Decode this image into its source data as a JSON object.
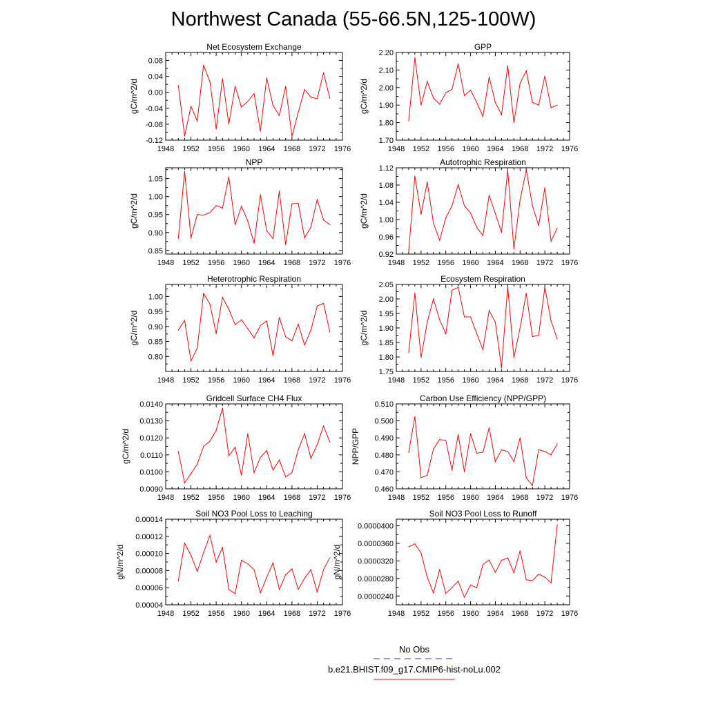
{
  "title": "Northwest Canada (55-66.5N,125-100W)",
  "legend": [
    {
      "label": "No Obs",
      "color": "#3333cc",
      "dash": true
    },
    {
      "label": "b.e21.BHIST.f09_g17.CMIP6-hist-noLu.002",
      "color": "#ff0000",
      "dash": false
    }
  ],
  "chart_data": [
    {
      "type": "line",
      "title": "Net Ecosystem Exchange",
      "ylabel": "gC/m^2/d",
      "xlim": [
        1948,
        1976
      ],
      "ylim": [
        -0.12,
        0.1
      ],
      "xticks": [
        "1948",
        "1952",
        "1956",
        "1960",
        "1964",
        "1968",
        "1972",
        "1976"
      ],
      "yticks": [
        "-0.12",
        "-0.08",
        "-0.04",
        "0.00",
        "0.04",
        "0.08"
      ],
      "x": [
        1950,
        1951,
        1952,
        1953,
        1954,
        1955,
        1956,
        1957,
        1958,
        1959,
        1960,
        1961,
        1962,
        1963,
        1964,
        1965,
        1966,
        1967,
        1968,
        1969,
        1970,
        1971,
        1972,
        1973,
        1974
      ],
      "series": [
        {
          "color": "#ff0000",
          "values": [
            0.017,
            -0.11,
            -0.035,
            -0.072,
            0.068,
            0.027,
            -0.092,
            0.034,
            -0.08,
            0.015,
            -0.037,
            -0.023,
            -0.003,
            -0.097,
            0.036,
            -0.033,
            -0.058,
            0.015,
            -0.11,
            -0.05,
            0.007,
            -0.012,
            -0.016,
            0.049,
            -0.015
          ]
        }
      ]
    },
    {
      "type": "line",
      "title": "GPP",
      "ylabel": "gC/m^2/d",
      "xlim": [
        1948,
        1976
      ],
      "ylim": [
        1.7,
        2.2
      ],
      "xticks": [
        "1948",
        "1952",
        "1956",
        "1960",
        "1964",
        "1968",
        "1972",
        "1976"
      ],
      "yticks": [
        "1.70",
        "1.80",
        "1.90",
        "2.00",
        "2.10",
        "2.20"
      ],
      "x": [
        1950,
        1951,
        1952,
        1953,
        1954,
        1955,
        1956,
        1957,
        1958,
        1959,
        1960,
        1961,
        1962,
        1963,
        1964,
        1965,
        1966,
        1967,
        1968,
        1969,
        1970,
        1971,
        1972,
        1973,
        1974
      ],
      "series": [
        {
          "color": "#ff0000",
          "values": [
            1.81,
            2.17,
            1.9,
            2.035,
            1.94,
            1.905,
            1.97,
            1.99,
            2.135,
            1.955,
            1.985,
            1.915,
            1.835,
            2.06,
            1.915,
            1.845,
            2.125,
            1.8,
            2.025,
            2.095,
            1.915,
            1.9,
            2.065,
            1.885,
            1.9
          ]
        }
      ]
    },
    {
      "type": "line",
      "title": "NPP",
      "ylabel": "gC/m^2/d",
      "xlim": [
        1948,
        1976
      ],
      "ylim": [
        0.84,
        1.08
      ],
      "xticks": [
        "1948",
        "1952",
        "1956",
        "1960",
        "1964",
        "1968",
        "1972",
        "1976"
      ],
      "yticks": [
        "0.85",
        "0.90",
        "0.95",
        "1.00",
        "1.05"
      ],
      "x": [
        1950,
        1951,
        1952,
        1953,
        1954,
        1955,
        1956,
        1957,
        1958,
        1959,
        1960,
        1961,
        1962,
        1963,
        1964,
        1965,
        1966,
        1967,
        1968,
        1969,
        1970,
        1971,
        1972,
        1973,
        1974
      ],
      "series": [
        {
          "color": "#ff0000",
          "values": [
            0.884,
            1.07,
            0.885,
            0.95,
            0.948,
            0.955,
            0.975,
            0.968,
            1.055,
            0.922,
            0.973,
            0.932,
            0.87,
            1.005,
            0.905,
            0.883,
            1.015,
            0.866,
            0.98,
            0.981,
            0.885,
            0.915,
            0.992,
            0.935,
            0.922
          ]
        }
      ]
    },
    {
      "type": "line",
      "title": "Autotrophic Respiration",
      "ylabel": "gC/m^2/d",
      "xlim": [
        1948,
        1976
      ],
      "ylim": [
        0.92,
        1.12
      ],
      "xticks": [
        "1948",
        "1952",
        "1956",
        "1960",
        "1964",
        "1968",
        "1972",
        "1976"
      ],
      "yticks": [
        "0.92",
        "0.96",
        "1.00",
        "1.04",
        "1.08",
        "1.12"
      ],
      "x": [
        1950,
        1951,
        1952,
        1953,
        1954,
        1955,
        1956,
        1957,
        1958,
        1959,
        1960,
        1961,
        1962,
        1963,
        1964,
        1965,
        1966,
        1967,
        1968,
        1969,
        1970,
        1971,
        1972,
        1973,
        1974
      ],
      "series": [
        {
          "color": "#ff0000",
          "values": [
            0.926,
            1.101,
            1.012,
            1.087,
            0.992,
            0.952,
            1.004,
            1.032,
            1.081,
            1.032,
            1.015,
            0.982,
            0.963,
            1.056,
            1.014,
            0.97,
            1.115,
            0.932,
            1.046,
            1.115,
            1.032,
            0.986,
            1.074,
            0.95,
            0.98
          ]
        }
      ]
    },
    {
      "type": "line",
      "title": "Heterotrophic Respiration",
      "ylabel": "gC/m^2/d",
      "xlim": [
        1948,
        1976
      ],
      "ylim": [
        0.75,
        1.04
      ],
      "xticks": [
        "1948",
        "1952",
        "1956",
        "1960",
        "1964",
        "1968",
        "1972",
        "1976"
      ],
      "yticks": [
        "0.80",
        "0.85",
        "0.90",
        "0.95",
        "1.00"
      ],
      "x": [
        1950,
        1951,
        1952,
        1953,
        1954,
        1955,
        1956,
        1957,
        1958,
        1959,
        1960,
        1961,
        1962,
        1963,
        1964,
        1965,
        1966,
        1967,
        1968,
        1969,
        1970,
        1971,
        1972,
        1973,
        1974
      ],
      "series": [
        {
          "color": "#ff0000",
          "values": [
            0.888,
            0.92,
            0.785,
            0.828,
            1.01,
            0.975,
            0.876,
            0.997,
            0.958,
            0.906,
            0.922,
            0.893,
            0.862,
            0.903,
            0.918,
            0.802,
            0.93,
            0.866,
            0.852,
            0.908,
            0.838,
            0.888,
            0.968,
            0.977,
            0.882
          ]
        }
      ]
    },
    {
      "type": "line",
      "title": "Ecosystem Respiration",
      "ylabel": "gC/m^2/d",
      "xlim": [
        1948,
        1976
      ],
      "ylim": [
        1.75,
        2.05
      ],
      "xticks": [
        "1948",
        "1952",
        "1956",
        "1960",
        "1964",
        "1968",
        "1972",
        "1976"
      ],
      "yticks": [
        "1.75",
        "1.80",
        "1.85",
        "1.90",
        "1.95",
        "2.00",
        "2.05"
      ],
      "x": [
        1950,
        1951,
        1952,
        1953,
        1954,
        1955,
        1956,
        1957,
        1958,
        1959,
        1960,
        1961,
        1962,
        1963,
        1964,
        1965,
        1966,
        1967,
        1968,
        1969,
        1970,
        1971,
        1972,
        1973,
        1974
      ],
      "series": [
        {
          "color": "#ff0000",
          "values": [
            1.815,
            2.02,
            1.798,
            1.92,
            2.0,
            1.928,
            1.88,
            2.03,
            2.04,
            1.938,
            1.938,
            1.88,
            1.825,
            1.96,
            1.92,
            1.762,
            2.043,
            1.798,
            1.9,
            2.02,
            1.87,
            1.875,
            2.04,
            1.925,
            1.862
          ]
        }
      ]
    },
    {
      "type": "line",
      "title": "Gridcell Surface CH4 Flux",
      "ylabel": "gC/m^2/d",
      "xlim": [
        1948,
        1976
      ],
      "ylim": [
        0.009,
        0.014
      ],
      "xticks": [
        "1948",
        "1952",
        "1956",
        "1960",
        "1964",
        "1968",
        "1972",
        "1976"
      ],
      "yticks": [
        "0.0090",
        "0.0100",
        "0.0110",
        "0.0120",
        "0.0130",
        "0.0140"
      ],
      "x": [
        1950,
        1951,
        1952,
        1953,
        1954,
        1955,
        1956,
        1957,
        1958,
        1959,
        1960,
        1961,
        1962,
        1963,
        1964,
        1965,
        1966,
        1967,
        1968,
        1969,
        1970,
        1971,
        1972,
        1973,
        1974
      ],
      "series": [
        {
          "color": "#ff0000",
          "values": [
            0.0112,
            0.00935,
            0.0099,
            0.01045,
            0.0115,
            0.0118,
            0.01245,
            0.01375,
            0.01095,
            0.01145,
            0.0098,
            0.01225,
            0.00995,
            0.01085,
            0.01125,
            0.0101,
            0.0107,
            0.0097,
            0.00995,
            0.0113,
            0.01225,
            0.0108,
            0.0116,
            0.0127,
            0.01175
          ]
        }
      ]
    },
    {
      "type": "line",
      "title": "Carbon Use Efficiency (NPP/GPP)",
      "ylabel": "NPP/GPP",
      "xlim": [
        1948,
        1976
      ],
      "ylim": [
        0.46,
        0.51
      ],
      "xticks": [
        "1948",
        "1952",
        "1956",
        "1960",
        "1964",
        "1968",
        "1972",
        "1976"
      ],
      "yticks": [
        "0.460",
        "0.470",
        "0.480",
        "0.490",
        "0.500",
        "0.510"
      ],
      "x": [
        1950,
        1951,
        1952,
        1953,
        1954,
        1955,
        1956,
        1957,
        1958,
        1959,
        1960,
        1961,
        1962,
        1963,
        1964,
        1965,
        1966,
        1967,
        1968,
        1969,
        1970,
        1971,
        1972,
        1973,
        1974
      ],
      "series": [
        {
          "color": "#ff0000",
          "values": [
            0.4815,
            0.5025,
            0.4665,
            0.468,
            0.4835,
            0.489,
            0.4885,
            0.471,
            0.492,
            0.47,
            0.4925,
            0.481,
            0.4815,
            0.496,
            0.476,
            0.483,
            0.482,
            0.476,
            0.49,
            0.4665,
            0.462,
            0.483,
            0.482,
            0.48,
            0.4865
          ]
        }
      ]
    },
    {
      "type": "line",
      "title": "Soil NO3 Pool Loss to Leaching",
      "ylabel": "gN/m^2/d",
      "xlim": [
        1948,
        1976
      ],
      "ylim": [
        4e-05,
        0.00014
      ],
      "xticks": [
        "1948",
        "1952",
        "1956",
        "1960",
        "1964",
        "1968",
        "1972",
        "1976"
      ],
      "yticks": [
        "0.00004",
        "0.00006",
        "0.00008",
        "0.00010",
        "0.00012",
        "0.00014"
      ],
      "x": [
        1950,
        1951,
        1952,
        1953,
        1954,
        1955,
        1956,
        1957,
        1958,
        1959,
        1960,
        1961,
        1962,
        1963,
        1964,
        1965,
        1966,
        1967,
        1968,
        1969,
        1970,
        1971,
        1972,
        1973,
        1974
      ],
      "series": [
        {
          "color": "#ff0000",
          "values": [
            6.8e-05,
            0.000112,
            9.8e-05,
            7.9e-05,
            0.000101,
            0.000121,
            9e-05,
            0.000107,
            5.8e-05,
            5.3e-05,
            9.2e-05,
            8.8e-05,
            8.1e-05,
            5.4e-05,
            7.2e-05,
            8.9e-05,
            5.8e-05,
            7.5e-05,
            8.2e-05,
            5.8e-05,
            7.1e-05,
            8.1e-05,
            5.5e-05,
            8.1e-05,
            9.5e-05
          ]
        }
      ]
    },
    {
      "type": "line",
      "title": "Soil NO3 Pool Loss to Runoff",
      "ylabel": "gN/m^2/d",
      "xlim": [
        1948,
        1976
      ],
      "ylim": [
        2.2e-05,
        4.15e-05
      ],
      "xticks": [
        "1948",
        "1952",
        "1956",
        "1960",
        "1964",
        "1968",
        "1972",
        "1976"
      ],
      "yticks": [
        "0.0000240",
        "0.0000280",
        "0.0000320",
        "0.0000360",
        "0.0000400"
      ],
      "x": [
        1950,
        1951,
        1952,
        1953,
        1954,
        1955,
        1956,
        1957,
        1958,
        1959,
        1960,
        1961,
        1962,
        1963,
        1964,
        1965,
        1966,
        1967,
        1968,
        1969,
        1970,
        1971,
        1972,
        1973,
        1974
      ],
      "series": [
        {
          "color": "#ff0000",
          "values": [
            3.52e-05,
            3.59e-05,
            3.38e-05,
            2.83e-05,
            2.47e-05,
            3e-05,
            2.46e-05,
            2.59e-05,
            2.74e-05,
            2.37e-05,
            2.65e-05,
            2.59e-05,
            3.12e-05,
            3.22e-05,
            2.94e-05,
            3.21e-05,
            3.27e-05,
            2.93e-05,
            3.43e-05,
            2.77e-05,
            2.75e-05,
            2.9e-05,
            2.83e-05,
            2.7e-05,
            4.02e-05
          ]
        }
      ]
    }
  ]
}
